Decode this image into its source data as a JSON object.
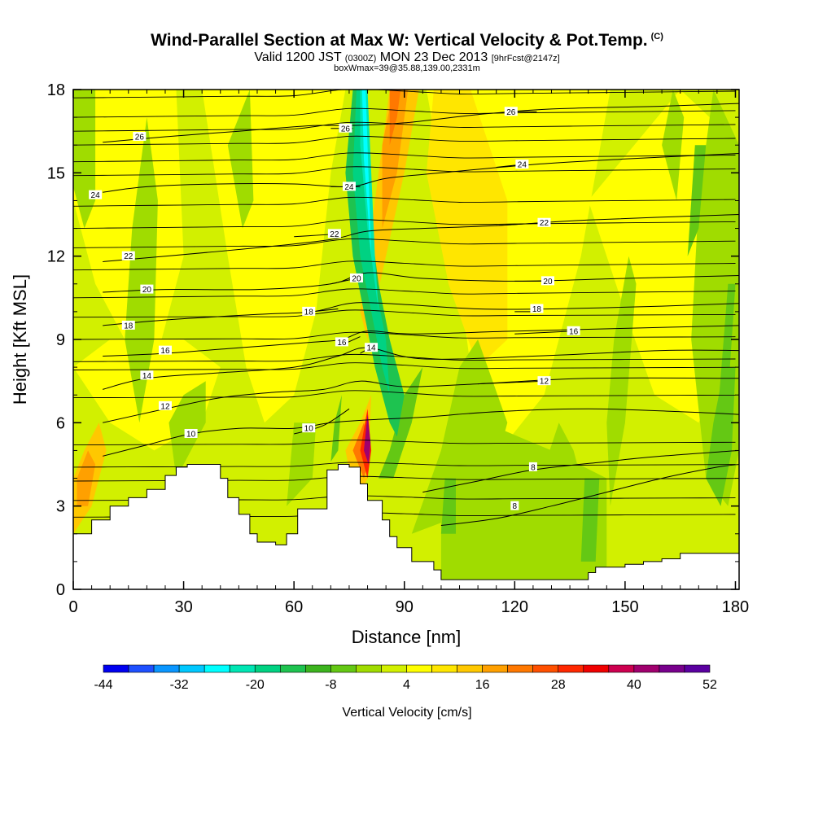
{
  "title": {
    "main": "Wind-Parallel Section at Max W: Vertical Velocity & Pot.Temp.",
    "copyright": "(C)",
    "subtitle_a": "Valid 1200 JST",
    "subtitle_b": "(0300Z)",
    "subtitle_c": "MON 23 Dec 2013",
    "subtitle_d": "[9hrFcst@2147z]",
    "line3": "boxWmax=39@35.88,139.00,2331m"
  },
  "chart_data": {
    "type": "heatmap",
    "xlabel": "Distance [nm]",
    "ylabel": "Height [Kft MSL]",
    "xlim": [
      0,
      181
    ],
    "ylim": [
      0,
      18
    ],
    "x_ticks": [
      0,
      30,
      60,
      90,
      120,
      150,
      180
    ],
    "y_ticks": [
      0,
      3,
      6,
      9,
      12,
      15,
      18
    ],
    "colorbar": {
      "title": "Vertical Velocity [cm/s]",
      "tick_labels": [
        "-44",
        "-32",
        "-20",
        "-8",
        "4",
        "16",
        "28",
        "40",
        "52"
      ],
      "colors": [
        "#0000f0",
        "#1e50ff",
        "#0a96ff",
        "#00c8ff",
        "#00ffff",
        "#00e6b4",
        "#00d282",
        "#1ec350",
        "#3cb41e",
        "#64c814",
        "#a0dc00",
        "#d2f000",
        "#ffff00",
        "#ffe600",
        "#ffc800",
        "#ffa000",
        "#ff7800",
        "#ff5000",
        "#ff2800",
        "#f00000",
        "#cd0050",
        "#a0006e",
        "#78008c",
        "#5a00a0"
      ]
    },
    "terrain_kft": [
      [
        0,
        2.0
      ],
      [
        5,
        2.5
      ],
      [
        10,
        3.0
      ],
      [
        15,
        3.3
      ],
      [
        20,
        3.6
      ],
      [
        25,
        4.1
      ],
      [
        28,
        4.4
      ],
      [
        31,
        4.5
      ],
      [
        35,
        4.5
      ],
      [
        40,
        4.0
      ],
      [
        42,
        3.3
      ],
      [
        45,
        2.7
      ],
      [
        48,
        2.0
      ],
      [
        50,
        1.7
      ],
      [
        55,
        1.6
      ],
      [
        58,
        2.0
      ],
      [
        61,
        2.9
      ],
      [
        66,
        2.9
      ],
      [
        69,
        4.3
      ],
      [
        72,
        4.5
      ],
      [
        75,
        4.4
      ],
      [
        78,
        3.8
      ],
      [
        80,
        3.2
      ],
      [
        84,
        2.5
      ],
      [
        86,
        1.9
      ],
      [
        88,
        1.5
      ],
      [
        92,
        1.0
      ],
      [
        98,
        0.7
      ],
      [
        100,
        0.35
      ],
      [
        110,
        0.35
      ],
      [
        120,
        0.35
      ],
      [
        130,
        0.35
      ],
      [
        135,
        0.35
      ],
      [
        140,
        0.6
      ],
      [
        142,
        0.8
      ],
      [
        150,
        0.9
      ],
      [
        155,
        1.0
      ],
      [
        160,
        1.1
      ],
      [
        165,
        1.3
      ],
      [
        170,
        1.3
      ],
      [
        181,
        1.3
      ]
    ],
    "theta_contours": [
      {
        "label": "8",
        "points": [
          [
            100,
            2.3
          ],
          [
            115,
            2.55
          ],
          [
            130,
            3.0
          ],
          [
            145,
            3.5
          ],
          [
            160,
            4.0
          ],
          [
            175,
            4.4
          ],
          [
            181,
            4.5
          ]
        ],
        "label_at": [
          120,
          3.0
        ]
      },
      {
        "label": "8",
        "points": [
          [
            95,
            3.5
          ],
          [
            110,
            3.9
          ],
          [
            125,
            4.3
          ],
          [
            145,
            4.6
          ],
          [
            160,
            4.8
          ],
          [
            181,
            5.0
          ]
        ],
        "label_at": [
          125,
          4.4
        ]
      },
      {
        "label": "10",
        "points": [
          [
            8,
            4.8
          ],
          [
            20,
            5.2
          ],
          [
            32,
            5.6
          ],
          [
            45,
            5.8
          ],
          [
            60,
            5.8
          ],
          [
            70,
            6.0
          ],
          [
            80,
            6.1
          ],
          [
            95,
            6.2
          ],
          [
            115,
            6.4
          ],
          [
            140,
            6.5
          ],
          [
            165,
            6.4
          ],
          [
            181,
            6.3
          ]
        ],
        "label_at": [
          32,
          5.6
        ]
      },
      {
        "label": "10",
        "points": [
          [
            60,
            5.6
          ],
          [
            68,
            5.9
          ],
          [
            75,
            6.5
          ]
        ],
        "label_at": [
          64,
          5.8
        ]
      },
      {
        "label": "12",
        "points": [
          [
            8,
            6.0
          ],
          [
            25,
            6.5
          ],
          [
            40,
            6.9
          ],
          [
            55,
            7.1
          ],
          [
            68,
            7.2
          ],
          [
            78,
            7.5
          ],
          [
            90,
            7.3
          ],
          [
            110,
            7.4
          ],
          [
            140,
            7.6
          ],
          [
            181,
            7.6
          ]
        ],
        "label_at": [
          25,
          6.6
        ]
      },
      {
        "label": "12",
        "points": [
          [
            110,
            7.4
          ],
          [
            128,
            7.5
          ]
        ],
        "label_at": [
          128,
          7.5
        ]
      },
      {
        "label": "14",
        "points": [
          [
            8,
            7.2
          ],
          [
            20,
            7.6
          ],
          [
            40,
            7.8
          ],
          [
            60,
            8.0
          ],
          [
            72,
            8.4
          ],
          [
            80,
            8.7
          ],
          [
            95,
            8.3
          ],
          [
            125,
            8.4
          ],
          [
            160,
            8.6
          ],
          [
            181,
            8.6
          ]
        ],
        "label_at": [
          20,
          7.7
        ]
      },
      {
        "label": "14",
        "points": [
          [
            78,
            8.5
          ],
          [
            82,
            8.8
          ]
        ],
        "label_at": [
          81,
          8.7
        ]
      },
      {
        "label": "16",
        "points": [
          [
            8,
            8.4
          ],
          [
            25,
            8.5
          ],
          [
            45,
            8.7
          ],
          [
            65,
            8.9
          ],
          [
            73,
            9.0
          ],
          [
            80,
            9.3
          ],
          [
            92,
            9.2
          ],
          [
            120,
            9.3
          ],
          [
            150,
            9.4
          ],
          [
            181,
            9.5
          ]
        ],
        "label_at": [
          25,
          8.6
        ]
      },
      {
        "label": "16",
        "points": [
          [
            73,
            8.8
          ],
          [
            78,
            9.1
          ]
        ],
        "label_at": [
          73,
          8.9
        ]
      },
      {
        "label": "16",
        "points": [
          [
            120,
            9.2
          ],
          [
            136,
            9.3
          ]
        ],
        "label_at": [
          136,
          9.3
        ]
      },
      {
        "label": "18",
        "points": [
          [
            8,
            9.5
          ],
          [
            25,
            9.7
          ],
          [
            50,
            9.9
          ],
          [
            65,
            10.0
          ],
          [
            75,
            10.3
          ],
          [
            85,
            10.3
          ],
          [
            110,
            10.1
          ],
          [
            130,
            10.1
          ],
          [
            160,
            10.2
          ],
          [
            181,
            10.3
          ]
        ],
        "label_at": [
          15,
          9.5
        ]
      },
      {
        "label": "18",
        "points": [
          [
            65,
            10.0
          ],
          [
            72,
            10.1
          ]
        ],
        "label_at": [
          64,
          10.0
        ]
      },
      {
        "label": "18",
        "points": [
          [
            120,
            10.0
          ],
          [
            126,
            10.0
          ]
        ],
        "label_at": [
          126,
          10.1
        ]
      },
      {
        "label": "20",
        "points": [
          [
            8,
            10.7
          ],
          [
            25,
            10.8
          ],
          [
            50,
            10.8
          ],
          [
            70,
            11.0
          ],
          [
            80,
            11.4
          ],
          [
            95,
            11.2
          ],
          [
            120,
            11.1
          ],
          [
            150,
            11.2
          ],
          [
            181,
            11.3
          ]
        ],
        "label_at": [
          20,
          10.8
        ]
      },
      {
        "label": "20",
        "points": [
          [
            70,
            11.0
          ],
          [
            77,
            11.2
          ]
        ],
        "label_at": [
          77,
          11.2
        ]
      },
      {
        "label": "20",
        "points": [
          [
            120,
            11.1
          ],
          [
            129,
            11.1
          ]
        ],
        "label_at": [
          129,
          11.1
        ]
      },
      {
        "label": "22",
        "points": [
          [
            8,
            11.8
          ],
          [
            25,
            12.0
          ],
          [
            50,
            12.3
          ],
          [
            70,
            12.6
          ],
          [
            80,
            12.9
          ],
          [
            95,
            13.0
          ],
          [
            115,
            13.1
          ],
          [
            140,
            13.3
          ],
          [
            181,
            13.5
          ]
        ],
        "label_at": [
          15,
          12.0
        ]
      },
      {
        "label": "22",
        "points": [
          [
            60,
            12.7
          ],
          [
            72,
            12.8
          ]
        ],
        "label_at": [
          71,
          12.8
        ]
      },
      {
        "label": "22",
        "points": [
          [
            115,
            13.1
          ],
          [
            128,
            13.2
          ]
        ],
        "label_at": [
          128,
          13.2
        ]
      },
      {
        "label": "24",
        "points": [
          [
            8,
            14.3
          ],
          [
            20,
            14.5
          ],
          [
            40,
            14.6
          ],
          [
            60,
            14.6
          ],
          [
            75,
            14.5
          ],
          [
            85,
            14.8
          ],
          [
            100,
            15.0
          ],
          [
            125,
            15.3
          ],
          [
            150,
            15.5
          ],
          [
            181,
            15.7
          ]
        ],
        "label_at": [
          6,
          14.2
        ]
      },
      {
        "label": "24",
        "points": [
          [
            70,
            14.5
          ],
          [
            78,
            14.5
          ]
        ],
        "label_at": [
          75,
          14.5
        ]
      },
      {
        "label": "24",
        "points": [
          [
            115,
            15.2
          ],
          [
            122,
            15.3
          ]
        ],
        "label_at": [
          122,
          15.3
        ]
      },
      {
        "label": "26",
        "points": [
          [
            8,
            16.1
          ],
          [
            25,
            16.3
          ],
          [
            45,
            16.5
          ],
          [
            65,
            16.7
          ],
          [
            75,
            16.7
          ],
          [
            90,
            16.8
          ],
          [
            110,
            17.1
          ],
          [
            130,
            17.3
          ],
          [
            160,
            17.4
          ],
          [
            181,
            17.5
          ]
        ],
        "label_at": [
          18,
          16.3
        ]
      },
      {
        "label": "26",
        "points": [
          [
            70,
            16.6
          ],
          [
            76,
            16.6
          ]
        ],
        "label_at": [
          74,
          16.6
        ]
      },
      {
        "label": "26",
        "points": [
          [
            120,
            17.2
          ],
          [
            126,
            17.2
          ]
        ],
        "label_at": [
          119,
          17.2
        ]
      }
    ],
    "background_contours_kft": [
      2.6,
      3.2,
      3.9,
      4.4,
      5.2,
      6.9,
      7.9,
      8.2,
      9.0,
      9.8,
      10.5,
      11.5,
      12.3,
      13.0,
      13.8,
      14.9,
      15.4,
      16.0,
      16.5,
      17.0,
      17.7
    ]
  }
}
